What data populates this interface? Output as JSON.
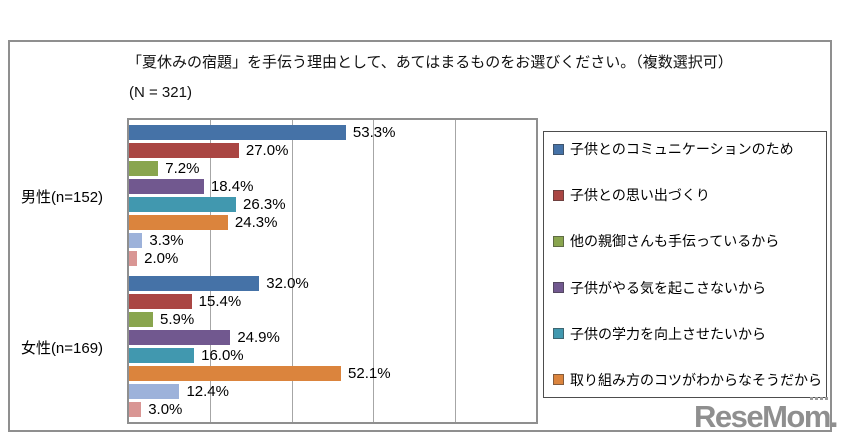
{
  "watermark": "ReseMom.",
  "chart_data": {
    "type": "bar",
    "orientation": "horizontal",
    "title": "「夏休みの宿題」を手伝う理由として、あてはまるものをお選びください。（複数選択可）",
    "subtitle": "(N = 321)",
    "categories": [
      "男性(n=152)",
      "女性(n=169)"
    ],
    "value_unit": "%",
    "xlim": [
      0,
      100
    ],
    "gridlines": {
      "interval_pct": 20,
      "visible": true
    },
    "legend": {
      "position": "right",
      "visible_items": 6
    },
    "series": [
      {
        "name": "子供とのコミュニケーションのため",
        "color": "#4572A7",
        "values": [
          53.3,
          32.0
        ]
      },
      {
        "name": "子供との思い出づくり",
        "color": "#AA4643",
        "values": [
          27.0,
          15.4
        ]
      },
      {
        "name": "他の親御さんも手伝っているから",
        "color": "#89A54E",
        "values": [
          7.2,
          5.9
        ]
      },
      {
        "name": "子供がやる気を起こさないから",
        "color": "#71588F",
        "values": [
          18.4,
          24.9
        ]
      },
      {
        "name": "子供の学力を向上させたいから",
        "color": "#4198AF",
        "values": [
          26.3,
          16.0
        ]
      },
      {
        "name": "取り組み方のコツがわからなそうだから",
        "color": "#DB843D",
        "values": [
          24.3,
          52.1
        ]
      },
      {
        "name": "",
        "color": "#9DB2DA",
        "values": [
          3.3,
          12.4
        ]
      },
      {
        "name": "",
        "color": "#D99694",
        "values": [
          2.0,
          3.0
        ]
      }
    ]
  }
}
